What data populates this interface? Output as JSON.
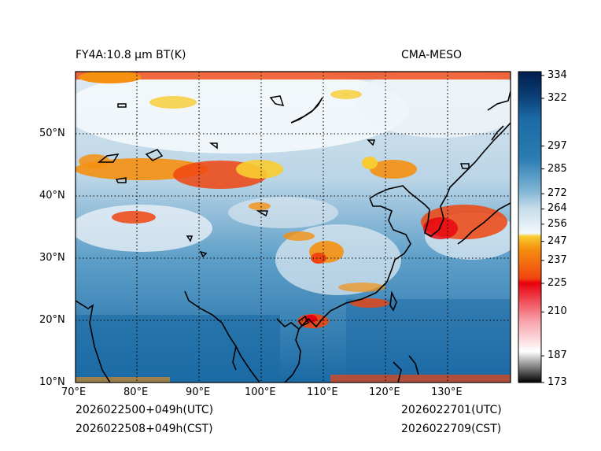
{
  "title_left": "FY4A:10.8 µm BT(K)",
  "title_right": "CMA-MESO",
  "footer": {
    "init_utc": "2026022500+049h(UTC)",
    "init_cst": "2026022508+049h(CST)",
    "valid_utc": "2026022701(UTC)",
    "valid_cst": "2026022709(CST)"
  },
  "longitude_ticks": [
    "70°E",
    "80°E",
    "90°E",
    "100°E",
    "110°E",
    "120°E",
    "130°E"
  ],
  "latitude_ticks": [
    "10°N",
    "20°N",
    "30°N",
    "40°N",
    "50°N"
  ],
  "colorbar": {
    "min": 173,
    "max": 336,
    "ticks": [
      "173",
      "187",
      "210",
      "225",
      "237",
      "247",
      "256",
      "264",
      "272",
      "285",
      "297",
      "322",
      "334"
    ],
    "colors": {
      "cold_black": "#000000",
      "gray": "#9a9a9a",
      "white_low": "#ffffff",
      "pink": "#f7a0a8",
      "red": "#e8000e",
      "orange_red": "#f04510",
      "orange": "#f59010",
      "yellow": "#f8cc30",
      "white_mid": "#f4f8fb",
      "light_blue": "#c5dceb",
      "sky_blue": "#7db3d3",
      "steel_blue": "#2b7cb2",
      "ocean_blue": "#1b6aa5",
      "deep_blue": "#0b3f75",
      "navy": "#021e4d"
    }
  }
}
